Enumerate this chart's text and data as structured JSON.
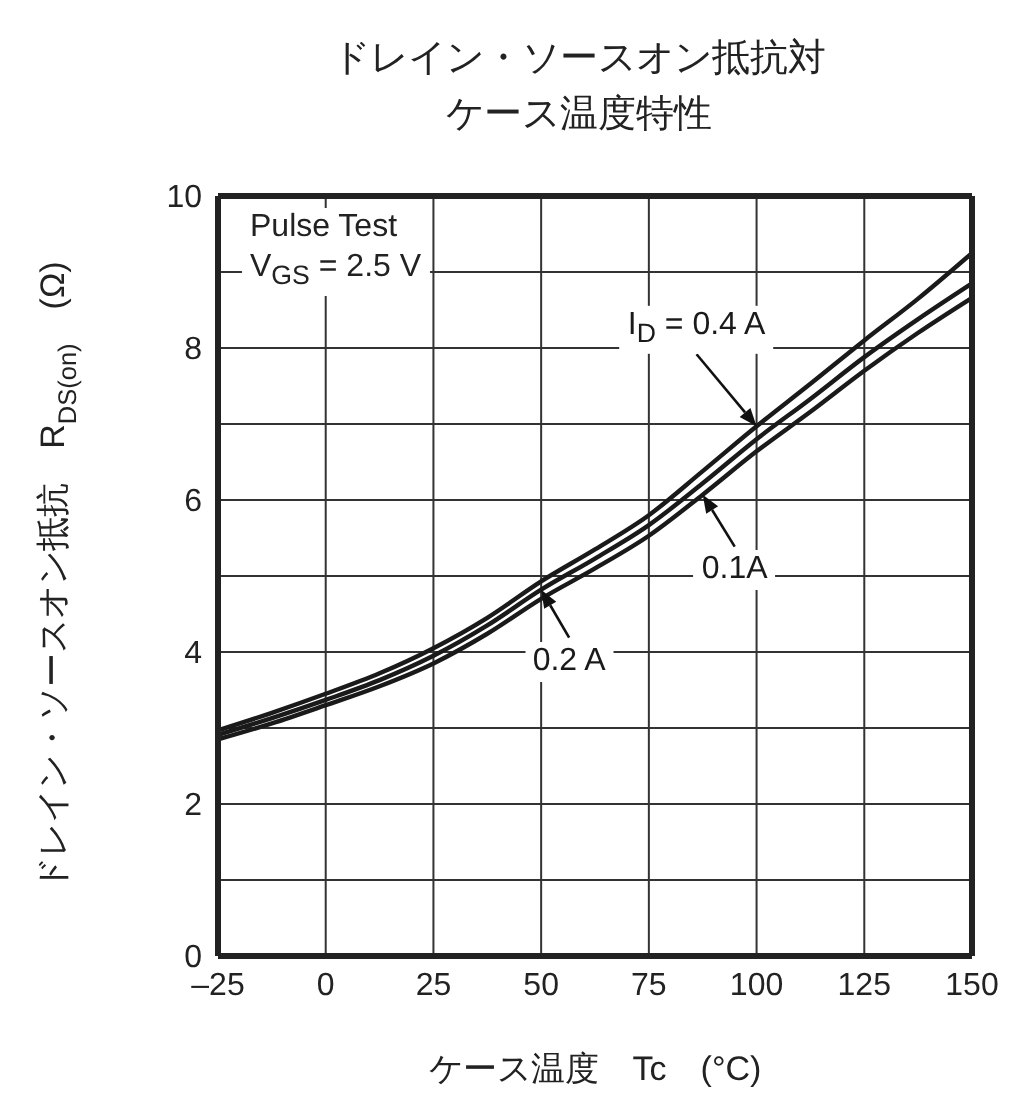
{
  "chart_data": {
    "type": "line",
    "title": "ドレイン・ソースオン抵抗対ケース温度特性",
    "xlabel": "ケース温度　Tc　(°C)",
    "ylabel": "ドレイン・ソースオン抵抗　R$_{DS(on)}$　(Ω)",
    "annotations": [
      "Pulse Test",
      "V$_{GS}$ = 2.5 V"
    ],
    "x": [
      -25,
      -12.5,
      0,
      12.5,
      25,
      37.5,
      50,
      62.5,
      75,
      87.5,
      100,
      112.5,
      125,
      137.5,
      150
    ],
    "series": [
      {
        "name": "I$_{D}$ = 0.4 A",
        "color": "#1a1a1a",
        "values": [
          2.97,
          3.2,
          3.45,
          3.72,
          4.05,
          4.45,
          4.93,
          5.35,
          5.8,
          6.38,
          6.97,
          7.53,
          8.1,
          8.65,
          9.25
        ]
      },
      {
        "name": "0.2 A",
        "color": "#1a1a1a",
        "values": [
          2.91,
          3.13,
          3.37,
          3.63,
          3.95,
          4.35,
          4.82,
          5.23,
          5.67,
          6.22,
          6.8,
          7.33,
          7.88,
          8.38,
          8.85
        ]
      },
      {
        "name": "0.1A",
        "color": "#1a1a1a",
        "values": [
          2.85,
          3.06,
          3.3,
          3.55,
          3.85,
          4.24,
          4.7,
          5.1,
          5.53,
          6.07,
          6.64,
          7.16,
          7.7,
          8.2,
          8.66
        ]
      }
    ],
    "xlim": [
      -25,
      150
    ],
    "xticks": [
      {
        "value": -25,
        "label": "–25"
      },
      0,
      25,
      50,
      75,
      100,
      125,
      150
    ],
    "ylim": [
      0,
      10
    ],
    "yticks": [
      0,
      {
        "value": 1,
        "label": null
      },
      2,
      {
        "value": 3,
        "label": null
      },
      4,
      {
        "value": 5,
        "label": null
      },
      6,
      {
        "value": 7,
        "label": null
      },
      8,
      {
        "value": 9,
        "label": null
      },
      10
    ],
    "grid": true,
    "legend": "center",
    "marker": "none",
    "line_style": "solid"
  }
}
